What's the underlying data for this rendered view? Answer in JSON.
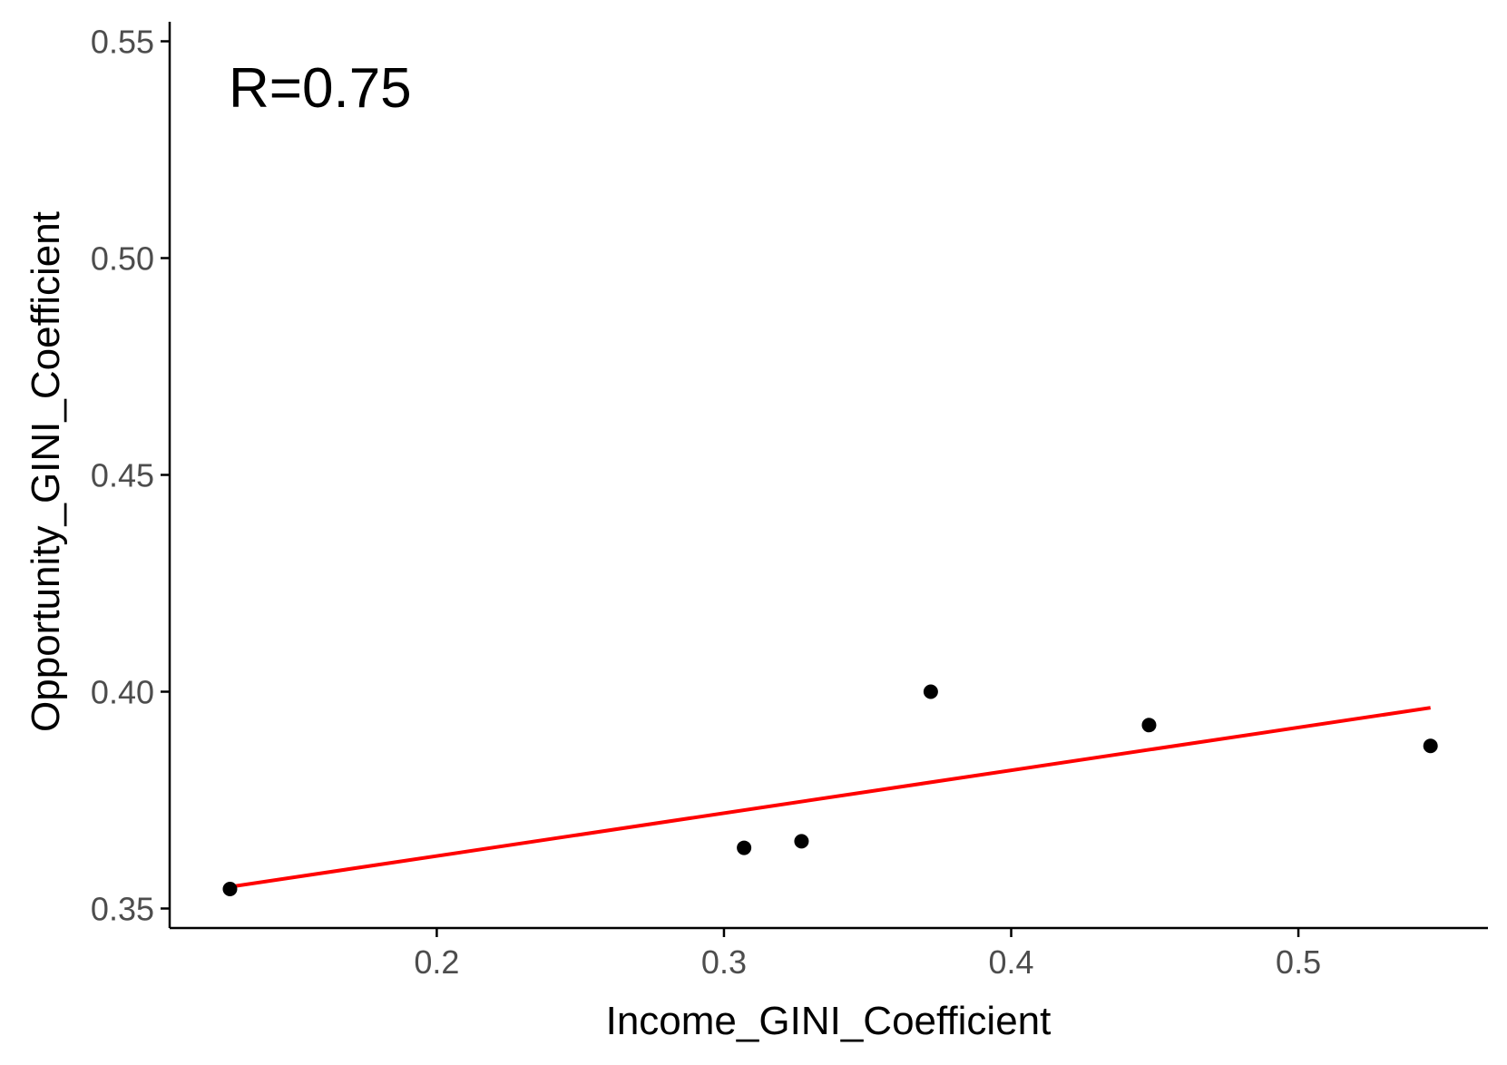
{
  "chart_data": {
    "type": "scatter",
    "title": "",
    "xlabel": "Income_GINI_Coefficient",
    "ylabel": "Opportunity_GINI_Coefficient",
    "annotation": "R=0.75",
    "xlim": [
      0.107,
      0.566
    ],
    "ylim": [
      0.3455,
      0.5545
    ],
    "x_ticks": [
      0.2,
      0.3,
      0.4,
      0.5
    ],
    "x_tick_labels": [
      "0.2",
      "0.3",
      "0.4",
      "0.5"
    ],
    "y_ticks": [
      0.35,
      0.4,
      0.45,
      0.5,
      0.55
    ],
    "y_tick_labels": [
      "0.35",
      "0.40",
      "0.45",
      "0.50",
      "0.55"
    ],
    "grid": false,
    "points": [
      {
        "x": 0.128,
        "y": 0.3545
      },
      {
        "x": 0.307,
        "y": 0.364
      },
      {
        "x": 0.327,
        "y": 0.3655
      },
      {
        "x": 0.372,
        "y": 0.4
      },
      {
        "x": 0.448,
        "y": 0.3923
      },
      {
        "x": 0.546,
        "y": 0.3875
      }
    ],
    "fit_line": {
      "x": [
        0.128,
        0.546
      ],
      "y": [
        0.355,
        0.3963
      ]
    },
    "colors": {
      "points": "#000000",
      "fit_line": "#ff0000",
      "axis": "#000000",
      "tick_label": "#4d4d4d"
    }
  }
}
